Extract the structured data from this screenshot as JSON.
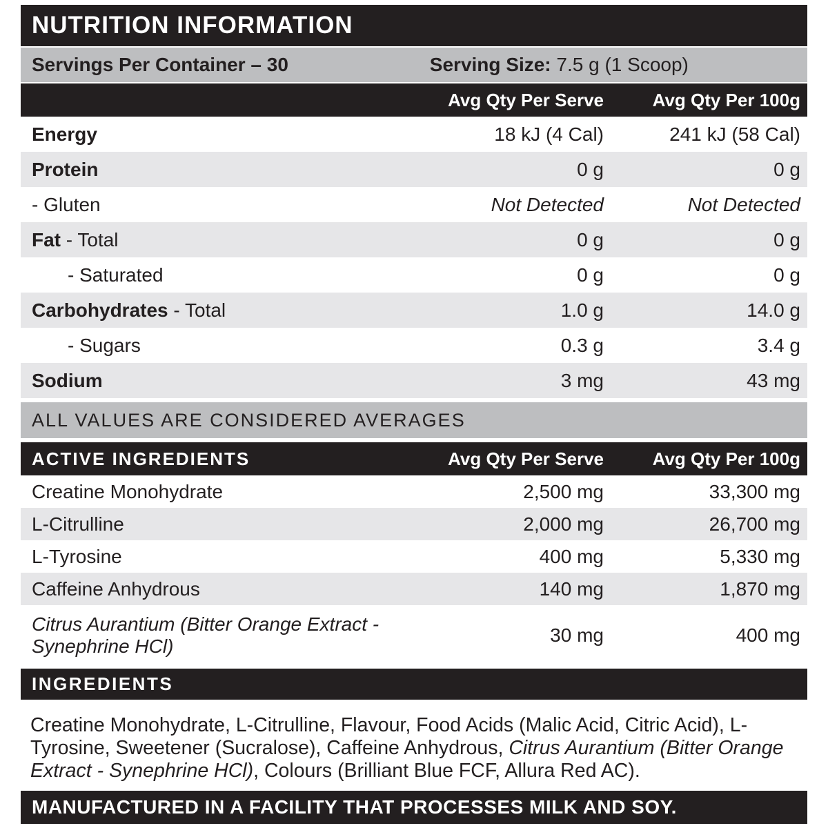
{
  "colors": {
    "black_bar": "#231f20",
    "silver_bar": "#bdbec0",
    "row_shade": "#e6e6e8",
    "background": "#ffffff"
  },
  "header": {
    "title": "NUTRITION INFORMATION"
  },
  "servings": {
    "per_container": "Servings Per Container – 30",
    "size_label": "Serving Size:",
    "size_value": " 7.5 g (1 Scoop)"
  },
  "columns": {
    "serve": "Avg Qty Per Serve",
    "per100": "Avg Qty Per 100g"
  },
  "nutrition": {
    "rows": [
      {
        "bold": "Energy",
        "rest": "",
        "serve": "18 kJ (4 Cal)",
        "per100": "241 kJ (58 Cal)",
        "shade": false,
        "indent": 0,
        "value_italic": false
      },
      {
        "bold": "Protein",
        "rest": "",
        "serve": "0 g",
        "per100": "0 g",
        "shade": true,
        "indent": 0,
        "value_italic": false
      },
      {
        "bold": "",
        "rest": "- Gluten",
        "serve": "Not Detected",
        "per100": "Not Detected",
        "shade": false,
        "indent": 0,
        "value_italic": true
      },
      {
        "bold": "Fat",
        "rest": " - Total",
        "serve": "0 g",
        "per100": "0 g",
        "shade": true,
        "indent": 0,
        "value_italic": false
      },
      {
        "bold": "",
        "rest": "- Saturated",
        "serve": "0 g",
        "per100": "0 g",
        "shade": false,
        "indent": 1,
        "value_italic": false
      },
      {
        "bold": "Carbohydrates",
        "rest": " - Total",
        "serve": "1.0 g",
        "per100": "14.0 g",
        "shade": true,
        "indent": 0,
        "value_italic": false
      },
      {
        "bold": "",
        "rest": "- Sugars",
        "serve": "0.3 g",
        "per100": "3.4 g",
        "shade": false,
        "indent": 1,
        "value_italic": false
      },
      {
        "bold": "Sodium",
        "rest": "",
        "serve": "3 mg",
        "per100": "43 mg",
        "shade": true,
        "indent": 0,
        "value_italic": false
      }
    ]
  },
  "averages_note": "ALL VALUES ARE CONSIDERED AVERAGES",
  "active": {
    "title": "ACTIVE INGREDIENTS",
    "rows": [
      {
        "label": "Creatine Monohydrate",
        "serve": "2,500 mg",
        "per100": "33,300 mg",
        "shade": false,
        "italic": false,
        "tall": false
      },
      {
        "label": "L-Citrulline",
        "serve": "2,000 mg",
        "per100": "26,700 mg",
        "shade": true,
        "italic": false,
        "tall": false
      },
      {
        "label": "L-Tyrosine",
        "serve": "400 mg",
        "per100": "5,330 mg",
        "shade": false,
        "italic": false,
        "tall": false
      },
      {
        "label": "Caffeine Anhydrous",
        "serve": "140 mg",
        "per100": "1,870 mg",
        "shade": true,
        "italic": false,
        "tall": false
      },
      {
        "label": "Citrus Aurantium (Bitter Orange Extract - Synephrine HCl)",
        "serve": "30 mg",
        "per100": "400 mg",
        "shade": false,
        "italic": true,
        "tall": true
      }
    ]
  },
  "ingredients": {
    "title": "INGREDIENTS",
    "text_before": "Creatine Monohydrate, L-Citrulline, Flavour, Food Acids (Malic Acid, Citric Acid), L-Tyrosine, Sweetener (Sucralose), Caffeine Anhydrous, ",
    "text_italic": "Citrus Aurantium (Bitter Orange Extract - Synephrine HCl)",
    "text_after": ", Colours (Brilliant Blue FCF, Allura Red AC)."
  },
  "footer": {
    "text": "MANUFACTURED IN A FACILITY THAT PROCESSES MILK AND SOY."
  }
}
